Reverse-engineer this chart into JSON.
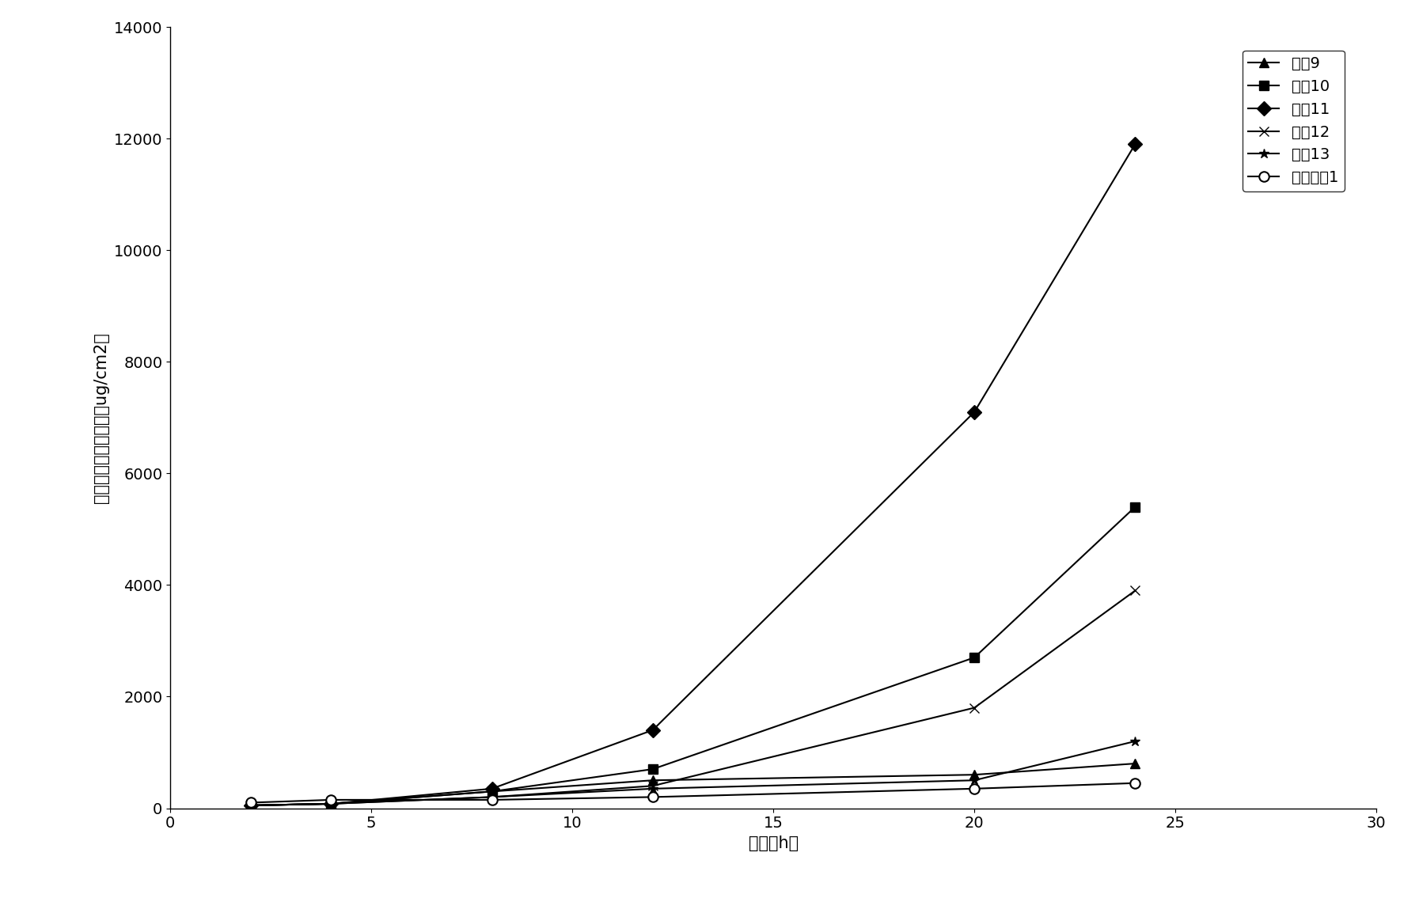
{
  "series": [
    {
      "label": "处方9",
      "marker": "^",
      "x": [
        2,
        4,
        8,
        12,
        20,
        24
      ],
      "y": [
        50,
        80,
        300,
        500,
        600,
        800
      ]
    },
    {
      "label": "处方10",
      "marker": "s",
      "x": [
        2,
        4,
        8,
        12,
        20,
        24
      ],
      "y": [
        50,
        80,
        300,
        700,
        2700,
        5400
      ]
    },
    {
      "label": "处方11",
      "marker": "D",
      "x": [
        2,
        4,
        8,
        12,
        20,
        24
      ],
      "y": [
        50,
        80,
        350,
        1400,
        7100,
        11900
      ]
    },
    {
      "label": "处方12",
      "marker": "x",
      "x": [
        2,
        4,
        8,
        12,
        20,
        24
      ],
      "y": [
        50,
        80,
        200,
        400,
        1800,
        3900
      ]
    },
    {
      "label": "处方13",
      "marker": "*",
      "x": [
        2,
        4,
        8,
        12,
        20,
        24
      ],
      "y": [
        50,
        80,
        200,
        350,
        500,
        1200
      ]
    },
    {
      "label": "对比处方1",
      "marker": "o",
      "x": [
        2,
        4,
        8,
        12,
        20,
        24
      ],
      "y": [
        100,
        150,
        150,
        200,
        350,
        450
      ]
    }
  ],
  "xlabel": "时间（h）",
  "ylabel": "单位面积累积透皮量（ug/cm2）",
  "xlim": [
    0,
    30
  ],
  "ylim": [
    0,
    14000
  ],
  "xticks": [
    0,
    5,
    10,
    15,
    20,
    25,
    30
  ],
  "yticks": [
    0,
    2000,
    4000,
    6000,
    8000,
    10000,
    12000,
    14000
  ],
  "line_color": "#000000",
  "background_color": "#ffffff",
  "marker_size": 9,
  "line_width": 1.5,
  "ylabel_fontsize": 15,
  "xlabel_fontsize": 15,
  "tick_fontsize": 14,
  "legend_fontsize": 14
}
